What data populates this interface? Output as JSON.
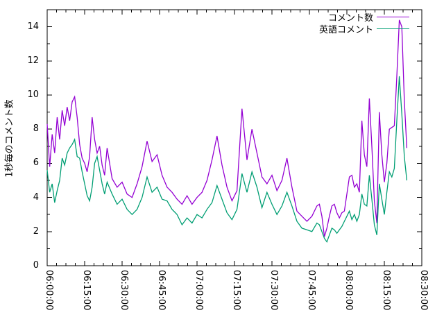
{
  "chart_data": {
    "type": "line",
    "title": "",
    "xlabel": "",
    "ylabel": "1秒毎のコメント数",
    "x_axis": {
      "unit": "time",
      "start_label": "06:00:00",
      "end_label": "08:30:00",
      "range_minutes": [
        0,
        150
      ],
      "major_tick_minutes": 15,
      "minor_tick_minutes": 3.75,
      "tick_labels": [
        "06:00:00",
        "06:15:00",
        "06:30:00",
        "06:45:00",
        "07:00:00",
        "07:15:00",
        "07:30:00",
        "07:45:00",
        "08:00:00",
        "08:15:00",
        "08:30:00"
      ],
      "tick_label_rotation_deg": 90
    },
    "y_axis": {
      "ylim": [
        0,
        15
      ],
      "major_ticks": [
        0,
        2,
        4,
        6,
        8,
        10,
        12,
        14
      ],
      "minor_ticks": [
        1,
        3,
        5,
        7,
        9,
        11,
        13,
        15
      ]
    },
    "grid": false,
    "legend_position": "top-right-inside",
    "series": [
      {
        "name": "コメント数",
        "color": "#9400d3"
      },
      {
        "name": "英語コメント",
        "color": "#009e73"
      }
    ],
    "points_format": [
      "minutes_after_06:00:00",
      "コメント数",
      "英語コメント"
    ],
    "points": [
      [
        0,
        8.3,
        5.6
      ],
      [
        1,
        5.8,
        4.3
      ],
      [
        2,
        7.7,
        4.8
      ],
      [
        3,
        6.6,
        3.7
      ],
      [
        4,
        8.7,
        4.4
      ],
      [
        5,
        7.4,
        5.0
      ],
      [
        6,
        9.1,
        6.3
      ],
      [
        7,
        8.2,
        5.9
      ],
      [
        8,
        9.3,
        6.6
      ],
      [
        9,
        8.5,
        6.9
      ],
      [
        10,
        9.6,
        7.1
      ],
      [
        11,
        9.9,
        7.4
      ],
      [
        12,
        8.7,
        6.4
      ],
      [
        13,
        7.1,
        6.3
      ],
      [
        14,
        6.3,
        5.5
      ],
      [
        15,
        6.0,
        4.8
      ],
      [
        16,
        5.5,
        4.1
      ],
      [
        17,
        6.4,
        3.8
      ],
      [
        18,
        8.7,
        4.6
      ],
      [
        19,
        7.4,
        6.0
      ],
      [
        20,
        6.6,
        6.4
      ],
      [
        21,
        7.0,
        5.6
      ],
      [
        22,
        5.9,
        4.8
      ],
      [
        23,
        5.3,
        4.2
      ],
      [
        24,
        6.9,
        4.9
      ],
      [
        26,
        5.1,
        4.2
      ],
      [
        28,
        4.6,
        3.6
      ],
      [
        30,
        4.9,
        3.9
      ],
      [
        32,
        4.2,
        3.3
      ],
      [
        34,
        4.0,
        3.0
      ],
      [
        36,
        4.8,
        3.3
      ],
      [
        38,
        5.8,
        4.0
      ],
      [
        40,
        7.3,
        5.2
      ],
      [
        42,
        6.1,
        4.3
      ],
      [
        44,
        6.5,
        4.6
      ],
      [
        46,
        5.3,
        3.9
      ],
      [
        48,
        4.6,
        3.8
      ],
      [
        50,
        4.3,
        3.3
      ],
      [
        52,
        3.9,
        3.0
      ],
      [
        54,
        3.6,
        2.4
      ],
      [
        56,
        4.1,
        2.8
      ],
      [
        58,
        3.6,
        2.5
      ],
      [
        60,
        4.0,
        3.0
      ],
      [
        62,
        4.3,
        2.8
      ],
      [
        64,
        5.0,
        3.3
      ],
      [
        66,
        6.2,
        3.7
      ],
      [
        68,
        7.6,
        4.7
      ],
      [
        70,
        5.9,
        3.9
      ],
      [
        72,
        4.6,
        3.1
      ],
      [
        74,
        3.8,
        2.7
      ],
      [
        76,
        4.4,
        3.3
      ],
      [
        78,
        9.2,
        5.4
      ],
      [
        80,
        6.2,
        4.3
      ],
      [
        82,
        8.0,
        5.5
      ],
      [
        84,
        6.6,
        4.6
      ],
      [
        86,
        5.2,
        3.4
      ],
      [
        88,
        4.8,
        4.3
      ],
      [
        90,
        5.3,
        3.6
      ],
      [
        92,
        4.4,
        3.0
      ],
      [
        94,
        5.0,
        3.5
      ],
      [
        96,
        6.3,
        4.3
      ],
      [
        98,
        4.6,
        3.5
      ],
      [
        100,
        3.2,
        2.6
      ],
      [
        102,
        2.9,
        2.2
      ],
      [
        104,
        2.6,
        2.1
      ],
      [
        106,
        2.9,
        2.0
      ],
      [
        108,
        3.5,
        2.5
      ],
      [
        109,
        3.6,
        2.4
      ],
      [
        110,
        2.9,
        2.0
      ],
      [
        111,
        1.7,
        1.6
      ],
      [
        112,
        2.2,
        1.4
      ],
      [
        113,
        2.9,
        1.8
      ],
      [
        114,
        3.5,
        2.2
      ],
      [
        115,
        3.6,
        2.1
      ],
      [
        116,
        3.1,
        1.9
      ],
      [
        117,
        2.8,
        2.1
      ],
      [
        118,
        3.1,
        2.3
      ],
      [
        119,
        3.2,
        2.6
      ],
      [
        120,
        4.2,
        2.9
      ],
      [
        121,
        5.2,
        3.2
      ],
      [
        122,
        5.3,
        2.7
      ],
      [
        123,
        4.6,
        3.0
      ],
      [
        124,
        4.8,
        2.6
      ],
      [
        125,
        4.3,
        3.0
      ],
      [
        126,
        8.5,
        4.2
      ],
      [
        127,
        6.5,
        3.6
      ],
      [
        128,
        5.8,
        3.5
      ],
      [
        129,
        9.8,
        5.3
      ],
      [
        130,
        7.0,
        3.9
      ],
      [
        131,
        3.8,
        2.4
      ],
      [
        132,
        2.5,
        1.8
      ],
      [
        133,
        9.0,
        4.8
      ],
      [
        134,
        6.5,
        3.9
      ],
      [
        135,
        4.9,
        3.0
      ],
      [
        136,
        6.0,
        4.3
      ],
      [
        137,
        8.0,
        5.5
      ],
      [
        138,
        8.1,
        5.2
      ],
      [
        139,
        8.2,
        5.7
      ],
      [
        140,
        11.1,
        8.5
      ],
      [
        141,
        14.4,
        11.1
      ],
      [
        142,
        14.0,
        8.9
      ],
      [
        143,
        9.7,
        6.4
      ],
      [
        144,
        6.9,
        5.0
      ]
    ]
  }
}
